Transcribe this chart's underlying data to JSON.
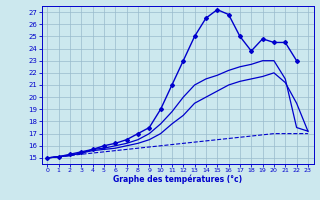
{
  "xlabel": "Graphe des températures (°c)",
  "ylim": [
    14.5,
    27.5
  ],
  "xlim": [
    -0.5,
    23.5
  ],
  "xticks": [
    0,
    1,
    2,
    3,
    4,
    5,
    6,
    7,
    8,
    9,
    10,
    11,
    12,
    13,
    14,
    15,
    16,
    17,
    18,
    19,
    20,
    21,
    22,
    23
  ],
  "yticks": [
    15,
    16,
    17,
    18,
    19,
    20,
    21,
    22,
    23,
    24,
    25,
    26,
    27
  ],
  "bg_color": "#cce8ee",
  "line_color": "#0000cc",
  "grid_color": "#99bbcc",
  "series_dashed_x": [
    0,
    1,
    2,
    3,
    4,
    5,
    6,
    7,
    8,
    9,
    10,
    11,
    12,
    13,
    14,
    15,
    16,
    17,
    18,
    19,
    20,
    21,
    22,
    23
  ],
  "series_dashed_y": [
    15.0,
    15.1,
    15.2,
    15.3,
    15.4,
    15.5,
    15.6,
    15.7,
    15.8,
    15.9,
    16.0,
    16.1,
    16.2,
    16.3,
    16.4,
    16.5,
    16.6,
    16.7,
    16.8,
    16.9,
    17.0,
    17.0,
    17.0,
    17.0
  ],
  "series_line2_x": [
    0,
    1,
    2,
    3,
    4,
    5,
    6,
    7,
    8,
    9,
    10,
    11,
    12,
    13,
    14,
    15,
    16,
    17,
    18,
    19,
    20,
    21,
    22,
    23
  ],
  "series_line2_y": [
    15.0,
    15.1,
    15.2,
    15.4,
    15.6,
    15.7,
    15.8,
    16.0,
    16.2,
    16.5,
    17.0,
    17.8,
    18.5,
    19.5,
    20.0,
    20.5,
    21.0,
    21.3,
    21.5,
    21.7,
    22.0,
    21.2,
    19.5,
    17.2
  ],
  "series_line3_x": [
    0,
    1,
    2,
    3,
    4,
    5,
    6,
    7,
    8,
    9,
    10,
    11,
    12,
    13,
    14,
    15,
    16,
    17,
    18,
    19,
    20,
    21,
    22,
    23
  ],
  "series_line3_y": [
    15.0,
    15.1,
    15.2,
    15.4,
    15.7,
    15.8,
    16.0,
    16.2,
    16.5,
    17.0,
    17.8,
    18.8,
    20.0,
    21.0,
    21.5,
    21.8,
    22.2,
    22.5,
    22.7,
    23.0,
    23.0,
    21.5,
    17.5,
    17.2
  ],
  "series_main_x": [
    0,
    1,
    2,
    3,
    4,
    5,
    6,
    7,
    8,
    9,
    10,
    11,
    12,
    13,
    14,
    15,
    16,
    17,
    18,
    19,
    20,
    21,
    22,
    23
  ],
  "series_main_y": [
    15.0,
    15.1,
    15.3,
    15.5,
    15.7,
    16.0,
    16.2,
    16.5,
    17.0,
    17.5,
    19.0,
    21.0,
    23.0,
    25.0,
    26.5,
    27.2,
    26.8,
    25.0,
    23.8,
    24.8,
    24.5,
    24.5,
    23.0,
    null
  ]
}
